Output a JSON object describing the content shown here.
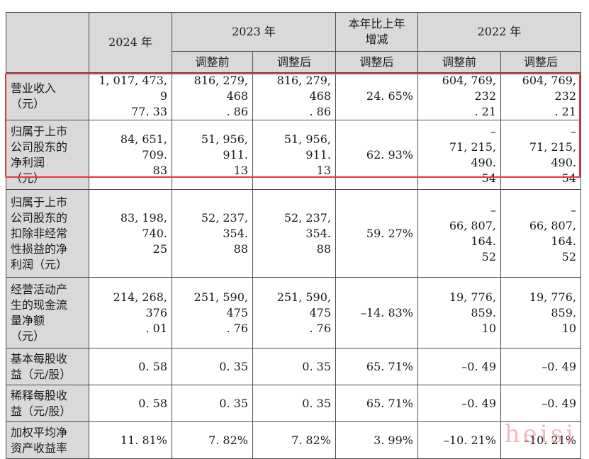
{
  "header": {
    "col_2024": "2024 年",
    "col_2023": "2023 年",
    "col_change": "本年比上年\n增减",
    "col_2022": "2022 年",
    "sub_before": "调整前",
    "sub_after": "调整后"
  },
  "rows": [
    {
      "label": "营业收入\n（元）",
      "v2024": "1, 017, 473, 9\n77. 33",
      "v2023_before": "816, 279, 468\n. 86",
      "v2023_after": "816, 279, 468\n. 86",
      "change": "24. 65%",
      "v2022_before": "604, 769, 232\n. 21",
      "v2022_after": "604, 769, 232\n. 21"
    },
    {
      "label": "归属于上市\n公司股东的\n净利润\n（元）",
      "v2024": "84, 651, 709.\n83",
      "v2023_before": "51, 956, 911.\n13",
      "v2023_after": "51, 956, 911.\n13",
      "change": "62. 93%",
      "v2022_before": "–\n71, 215, 490.\n54",
      "v2022_after": "–\n71, 215, 490.\n54"
    },
    {
      "label": "归属于上市\n公司股东的\n扣除非经常\n性损益的净\n利润（元）",
      "v2024": "83, 198, 740.\n25",
      "v2023_before": "52, 237, 354.\n88",
      "v2023_after": "52, 237, 354.\n88",
      "change": "59. 27%",
      "v2022_before": "–\n66, 807, 164.\n52",
      "v2022_after": "–\n66, 807, 164.\n52"
    },
    {
      "label": "经营活动产\n生的现金流\n量净额\n（元）",
      "v2024": "214, 268, 376\n. 01",
      "v2023_before": "251, 590, 475\n. 76",
      "v2023_after": "251, 590, 475\n. 76",
      "change": "–14. 83%",
      "v2022_before": "19, 776, 859.\n10",
      "v2022_after": "19, 776, 859.\n10"
    },
    {
      "label": "基本每股收\n益（元/股）",
      "v2024": "0. 58",
      "v2023_before": "0. 35",
      "v2023_after": "0. 35",
      "change": "65. 71%",
      "v2022_before": "–0. 49",
      "v2022_after": "–0. 49"
    },
    {
      "label": "稀释每股收\n益（元/股）",
      "v2024": "0. 58",
      "v2023_before": "0. 35",
      "v2023_after": "0. 35",
      "change": "65. 71%",
      "v2022_before": "–0. 49",
      "v2022_after": "–0. 49"
    },
    {
      "label": "加权平均净\n资产收益率",
      "v2024": "11. 81%",
      "v2023_before": "7. 82%",
      "v2023_after": "7. 82%",
      "change": "3. 99%",
      "v2022_before": "–10. 21%",
      "v2022_after": "–10. 21%"
    }
  ],
  "watermark": "heisi",
  "colors": {
    "header_bg": "#d9d9d9",
    "highlight_border": "#e0393f",
    "watermark": "#e6828c"
  }
}
